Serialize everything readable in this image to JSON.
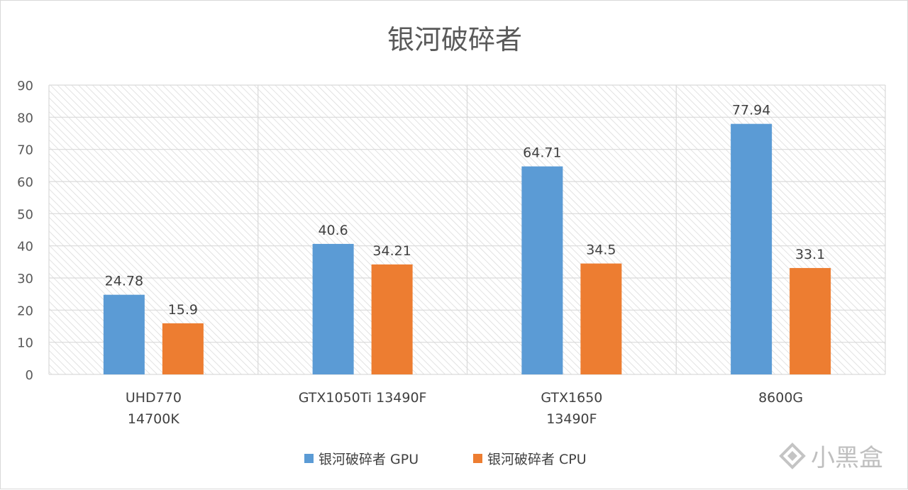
{
  "chart_data": {
    "type": "bar",
    "title": "银河破碎者",
    "categories": [
      [
        "UHD770",
        "14700K"
      ],
      [
        "GTX1050Ti 13490F"
      ],
      [
        "GTX1650",
        "13490F"
      ],
      [
        "8600G"
      ]
    ],
    "series": [
      {
        "name": "银河破碎者 GPU",
        "color": "#5b9bd5",
        "values": [
          24.78,
          40.6,
          64.71,
          77.94
        ],
        "labels": [
          "24.78",
          "40.6",
          "64.71",
          "77.94"
        ]
      },
      {
        "name": "银河破碎者 CPU",
        "color": "#ed7d31",
        "values": [
          15.9,
          34.21,
          34.5,
          33.1
        ],
        "labels": [
          "15.9",
          "34.21",
          "34.5",
          "33.1"
        ]
      }
    ],
    "ylim": [
      0,
      90
    ],
    "yticks": [
      0,
      10,
      20,
      30,
      40,
      50,
      60,
      70,
      80,
      90
    ],
    "grid": true,
    "legend": "bottom"
  },
  "watermark": "小黑盒"
}
